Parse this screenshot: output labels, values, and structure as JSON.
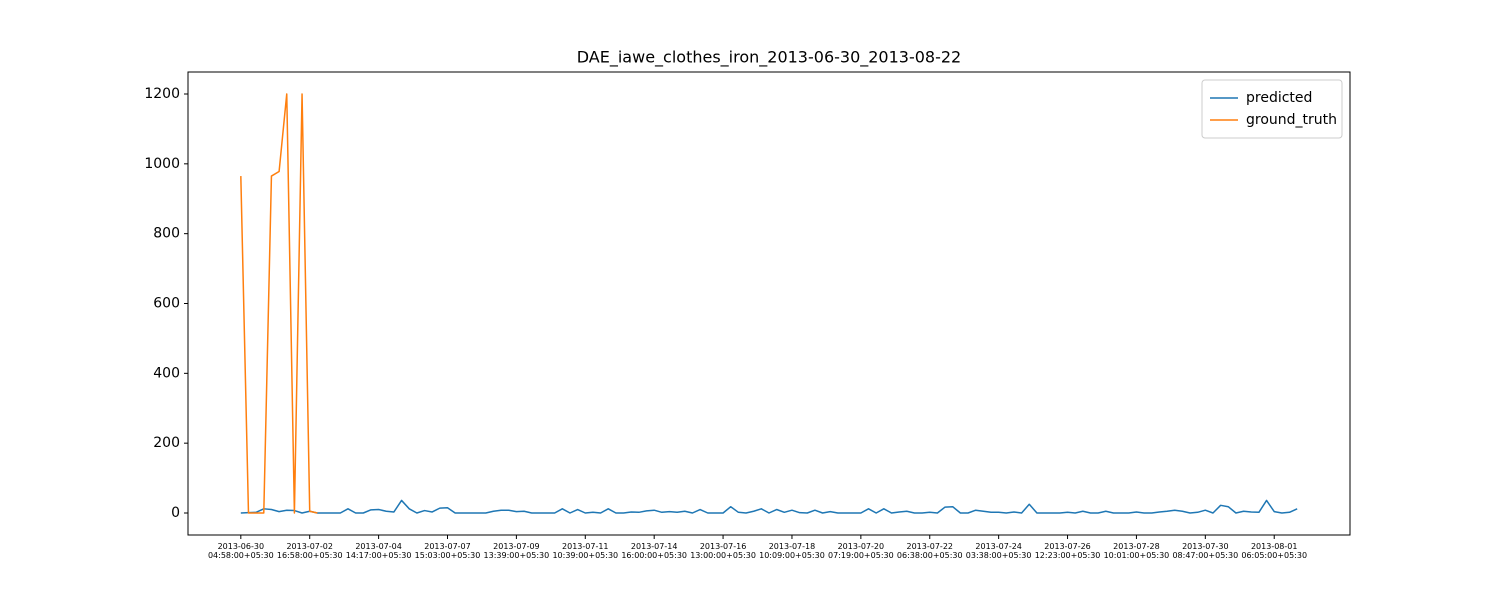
{
  "chart_data": {
    "type": "line",
    "title": "DAE_iawe_clothes_iron_2013-06-30_2013-08-22",
    "categories": [
      "2013-06-30\n04:58:00+05:30",
      null,
      null,
      null,
      null,
      null,
      null,
      null,
      null,
      "2013-07-02\n16:58:00+05:30",
      null,
      null,
      null,
      null,
      null,
      null,
      null,
      null,
      "2013-07-04\n14:17:00+05:30",
      null,
      null,
      null,
      null,
      null,
      null,
      null,
      null,
      "2013-07-07\n15:03:00+05:30",
      null,
      null,
      null,
      null,
      null,
      null,
      null,
      null,
      "2013-07-09\n13:39:00+05:30",
      null,
      null,
      null,
      null,
      null,
      null,
      null,
      null,
      "2013-07-11\n10:39:00+05:30",
      null,
      null,
      null,
      null,
      null,
      null,
      null,
      null,
      "2013-07-14\n16:00:00+05:30",
      null,
      null,
      null,
      null,
      null,
      null,
      null,
      null,
      "2013-07-16\n13:00:00+05:30",
      null,
      null,
      null,
      null,
      null,
      null,
      null,
      null,
      "2013-07-18\n10:09:00+05:30",
      null,
      null,
      null,
      null,
      null,
      null,
      null,
      null,
      "2013-07-20\n07:19:00+05:30",
      null,
      null,
      null,
      null,
      null,
      null,
      null,
      null,
      "2013-07-22\n06:38:00+05:30",
      null,
      null,
      null,
      null,
      null,
      null,
      null,
      null,
      "2013-07-24\n03:38:00+05:30",
      null,
      null,
      null,
      null,
      null,
      null,
      null,
      null,
      "2013-07-26\n12:23:00+05:30",
      null,
      null,
      null,
      null,
      null,
      null,
      null,
      null,
      "2013-07-28\n10:01:00+05:30",
      null,
      null,
      null,
      null,
      null,
      null,
      null,
      null,
      "2013-07-30\n08:47:00+05:30",
      null,
      null,
      null,
      null,
      null,
      null,
      null,
      null,
      "2013-08-01\n06:05:00+05:30",
      null,
      null,
      null
    ],
    "series": [
      {
        "name": "predicted",
        "color": "#1f77b4",
        "values": [
          0,
          1,
          2,
          12,
          10,
          4,
          8,
          7,
          0,
          5,
          0,
          0,
          0,
          0,
          12,
          0,
          0,
          9,
          10,
          5,
          3,
          36,
          12,
          0,
          7,
          3,
          14,
          15,
          0,
          0,
          0,
          0,
          0,
          5,
          8,
          8,
          4,
          5,
          0,
          0,
          0,
          0,
          12,
          0,
          10,
          0,
          2,
          0,
          12,
          0,
          0,
          3,
          2,
          6,
          8,
          2,
          4,
          2,
          5,
          0,
          10,
          0,
          0,
          0,
          18,
          2,
          0,
          5,
          12,
          0,
          10,
          2,
          8,
          1,
          0,
          8,
          0,
          4,
          0,
          0,
          0,
          0,
          12,
          0,
          12,
          0,
          3,
          5,
          0,
          0,
          2,
          0,
          17,
          18,
          0,
          0,
          8,
          5,
          2,
          2,
          0,
          3,
          0,
          25,
          0,
          0,
          0,
          0,
          2,
          0,
          5,
          0,
          0,
          5,
          0,
          0,
          0,
          3,
          0,
          0,
          3,
          5,
          8,
          5,
          0,
          2,
          8,
          0,
          22,
          18,
          0,
          5,
          3,
          2,
          36,
          4,
          0,
          2,
          12
        ]
      },
      {
        "name": "ground_truth",
        "color": "#ff7f0e",
        "values": [
          965,
          0,
          0,
          0,
          965,
          978,
          1200,
          0,
          1200,
          5,
          0,
          null,
          null,
          null,
          null,
          null,
          null,
          null,
          null,
          null,
          null,
          null,
          null,
          null,
          null,
          null,
          null,
          null,
          null,
          null,
          null,
          null,
          null,
          null,
          null,
          null,
          null,
          null,
          null,
          null,
          null,
          null,
          null,
          null,
          null,
          null,
          null,
          null,
          null,
          null,
          null,
          null,
          null,
          null,
          null,
          null,
          null,
          null,
          null,
          null,
          null,
          null,
          null,
          null,
          null,
          null,
          null,
          null,
          null,
          null,
          null,
          null,
          null,
          null,
          null,
          null,
          null,
          null,
          null,
          null,
          null,
          null,
          null,
          null,
          null,
          null,
          null,
          null,
          null,
          null,
          null,
          null,
          null,
          null,
          null,
          null,
          null,
          null,
          null,
          null,
          null,
          null,
          null,
          null,
          null,
          null,
          null,
          null,
          null,
          null,
          null,
          null,
          null,
          null,
          null,
          null,
          null,
          null,
          null,
          null,
          null,
          null,
          null,
          null,
          null,
          null,
          null,
          null,
          null,
          null,
          null,
          null,
          null,
          null,
          null,
          null,
          null,
          null,
          null
        ]
      }
    ],
    "ylim": [
      -63,
      1263
    ],
    "yticks": [
      0,
      200,
      400,
      600,
      800,
      1000,
      1200
    ],
    "grid": false,
    "legend": "upper-right"
  }
}
